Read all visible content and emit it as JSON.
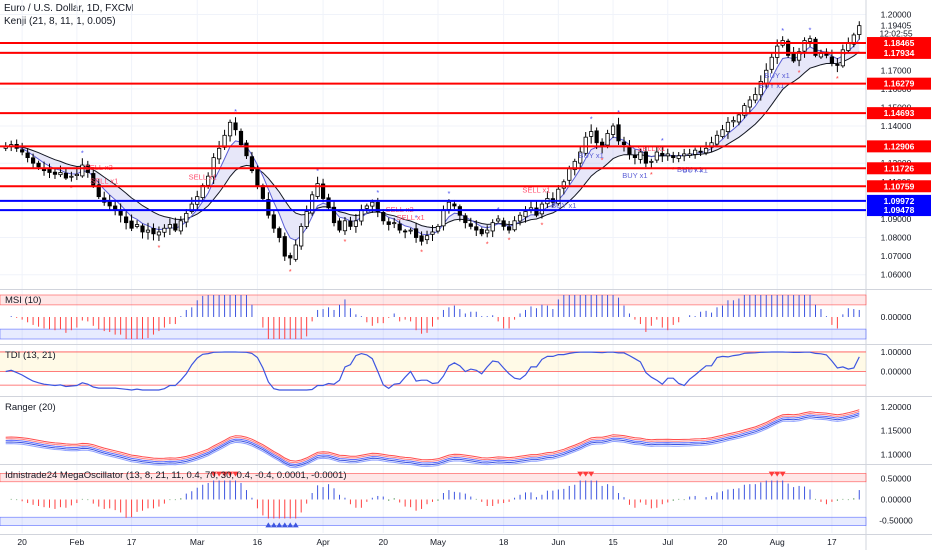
{
  "header": {
    "symbol_line": "Euro / U.S. Dollar, 1D, FXCM",
    "indicator_line": "Kenji (21, 8, 11, 1, 0.005)"
  },
  "price_axis": {
    "ticks": [
      "1.20000",
      "1.19405",
      "12:02:55",
      "1.18000",
      "1.17000",
      "1.16000",
      "1.15000",
      "1.14000",
      "1.13000",
      "1.12000",
      "1.11000",
      "1.10000",
      "1.09000",
      "1.08000",
      "1.07000",
      "1.06000"
    ]
  },
  "levels": [
    {
      "value": 1.18465,
      "label": "1.18465",
      "color": "#ff0000"
    },
    {
      "value": 1.17934,
      "label": "1.17934",
      "color": "#ff0000"
    },
    {
      "value": 1.16279,
      "label": "1.16279",
      "color": "#ff0000"
    },
    {
      "value": 1.14693,
      "label": "1.14693",
      "color": "#ff0000"
    },
    {
      "value": 1.12906,
      "label": "1.12906",
      "color": "#ff0000"
    },
    {
      "value": 1.11726,
      "label": "1.11726",
      "color": "#ff0000"
    },
    {
      "value": 1.10759,
      "label": "1.10759",
      "color": "#ff0000"
    },
    {
      "value": 1.09972,
      "label": "1.09972",
      "color": "#0000ff"
    },
    {
      "value": 1.09478,
      "label": "1.09478",
      "color": "#0000ff"
    }
  ],
  "panes": {
    "msi": {
      "title": "MSI (10)",
      "ticks": [
        "0.00000"
      ]
    },
    "tdi": {
      "title": "TDI (13, 21)",
      "ticks": [
        "1.00000",
        "0.00000"
      ]
    },
    "ranger": {
      "title": "Ranger (20)",
      "ticks": [
        "1.20000",
        "1.15000",
        "1.10000"
      ]
    },
    "mega": {
      "title": "Idnistrade24 MegaOscillator (13, 8, 21, 11, 0.4, 70, 30, 0.4, -0.4, 0.0001, -0.0001)",
      "ticks": [
        "0.50000",
        "0.00000",
        "-0.50000"
      ]
    }
  },
  "time_axis": {
    "labels": [
      "20",
      "Feb",
      "17",
      "Mar",
      "16",
      "Apr",
      "20",
      "May",
      "18",
      "Jun",
      "15",
      "Jul",
      "20",
      "Aug",
      "17"
    ]
  },
  "signals": [
    "SELL x2",
    "SELL x1",
    "SELL x1",
    "SELL x2",
    "SELL x1",
    "SELL x1",
    "BUY x1",
    "BUY x1",
    "BUY x1",
    "SELL x1",
    "BUY x1",
    "BUY x1",
    "BUY x1",
    "BUY x1"
  ],
  "chart_data": {
    "type": "candlestick",
    "title": "Euro / U.S. Dollar, 1D, FXCM",
    "ylim": [
      1.055,
      1.2035
    ],
    "close": [
      1.129,
      1.13,
      1.128,
      1.126,
      1.123,
      1.12,
      1.118,
      1.116,
      1.115,
      1.114,
      1.115,
      1.112,
      1.113,
      1.114,
      1.119,
      1.115,
      1.108,
      1.102,
      1.099,
      1.097,
      1.095,
      1.092,
      1.088,
      1.085,
      1.087,
      1.083,
      1.084,
      1.082,
      1.083,
      1.085,
      1.087,
      1.084,
      1.089,
      1.093,
      1.098,
      1.102,
      1.108,
      1.113,
      1.123,
      1.128,
      1.135,
      1.142,
      1.138,
      1.13,
      1.124,
      1.116,
      1.108,
      1.101,
      1.092,
      1.085,
      1.08,
      1.07,
      1.069,
      1.076,
      1.086,
      1.094,
      1.103,
      1.109,
      1.101,
      1.096,
      1.088,
      1.084,
      1.089,
      1.086,
      1.089,
      1.095,
      1.097,
      1.099,
      1.094,
      1.089,
      1.087,
      1.088,
      1.084,
      1.083,
      1.084,
      1.08,
      1.078,
      1.081,
      1.083,
      1.086,
      1.095,
      1.099,
      1.097,
      1.092,
      1.088,
      1.086,
      1.084,
      1.082,
      1.084,
      1.088,
      1.09,
      1.086,
      1.084,
      1.089,
      1.092,
      1.094,
      1.096,
      1.092,
      1.098,
      1.101,
      1.099,
      1.106,
      1.11,
      1.117,
      1.121,
      1.126,
      1.134,
      1.137,
      1.131,
      1.129,
      1.136,
      1.14,
      1.132,
      1.13,
      1.125,
      1.123,
      1.126,
      1.12,
      1.121,
      1.126,
      1.124,
      1.125,
      1.123,
      1.124,
      1.125,
      1.125,
      1.127,
      1.126,
      1.128,
      1.131,
      1.135,
      1.138,
      1.142,
      1.143,
      1.146,
      1.151,
      1.154,
      1.157,
      1.164,
      1.17,
      1.177,
      1.183,
      1.186,
      1.178,
      1.175,
      1.18,
      1.186,
      1.187,
      1.178,
      1.179,
      1.178,
      1.174,
      1.173,
      1.181,
      1.185,
      1.189,
      1.194
    ]
  }
}
